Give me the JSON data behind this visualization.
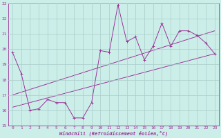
{
  "xlabel": "Windchill (Refroidissement éolien,°C)",
  "bg_color": "#cceee8",
  "line_color": "#993399",
  "grid_color": "#aacccc",
  "xlim": [
    -0.5,
    23.5
  ],
  "ylim": [
    15,
    23
  ],
  "yticks": [
    15,
    16,
    17,
    18,
    19,
    20,
    21,
    22,
    23
  ],
  "xticks": [
    0,
    1,
    2,
    3,
    4,
    5,
    6,
    7,
    8,
    9,
    10,
    11,
    12,
    13,
    14,
    15,
    16,
    17,
    18,
    19,
    20,
    21,
    22,
    23
  ],
  "series1_x": [
    0,
    1,
    2,
    3,
    4,
    5,
    6,
    7,
    8,
    9,
    10,
    11,
    12,
    13,
    14,
    15,
    16,
    17,
    18,
    19,
    20,
    21,
    22,
    23
  ],
  "series1_y": [
    19.8,
    18.4,
    16.0,
    16.1,
    16.7,
    16.5,
    16.5,
    15.5,
    15.5,
    16.5,
    19.9,
    19.8,
    22.9,
    20.5,
    20.8,
    19.3,
    20.2,
    21.7,
    20.2,
    21.2,
    21.2,
    20.9,
    20.4,
    19.7
  ],
  "trend1_x": [
    0,
    23
  ],
  "trend1_y": [
    16.2,
    19.7
  ],
  "trend2_x": [
    0,
    23
  ],
  "trend2_y": [
    17.0,
    21.2
  ]
}
